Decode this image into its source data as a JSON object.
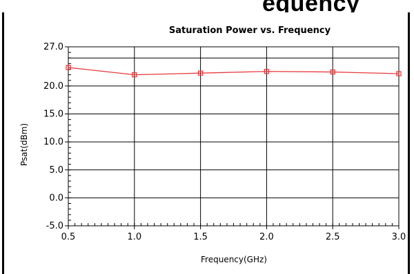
{
  "heading_fragment": "equency",
  "chart_data": {
    "type": "line",
    "title": "Saturation Power vs. Frequency",
    "xlabel": "Frequency(GHz)",
    "ylabel": "Psat(dBm)",
    "xlim": [
      0.5,
      3.0
    ],
    "ylim": [
      -5.0,
      27.0
    ],
    "xticks": [
      "0.5",
      "1.0",
      "1.5",
      "2.0",
      "2.5",
      "3.0"
    ],
    "yticks": [
      "-5.0",
      "0.0",
      "5.0",
      "10.0",
      "15.0",
      "20.0",
      "27.0"
    ],
    "grid": true,
    "legend": "none",
    "series": [
      {
        "color": "#e8383b",
        "x": [
          0.5,
          1.0,
          1.5,
          2.0,
          2.5,
          3.0
        ],
        "y": [
          23.3,
          22.0,
          22.3,
          22.6,
          22.5,
          22.2
        ]
      }
    ]
  }
}
